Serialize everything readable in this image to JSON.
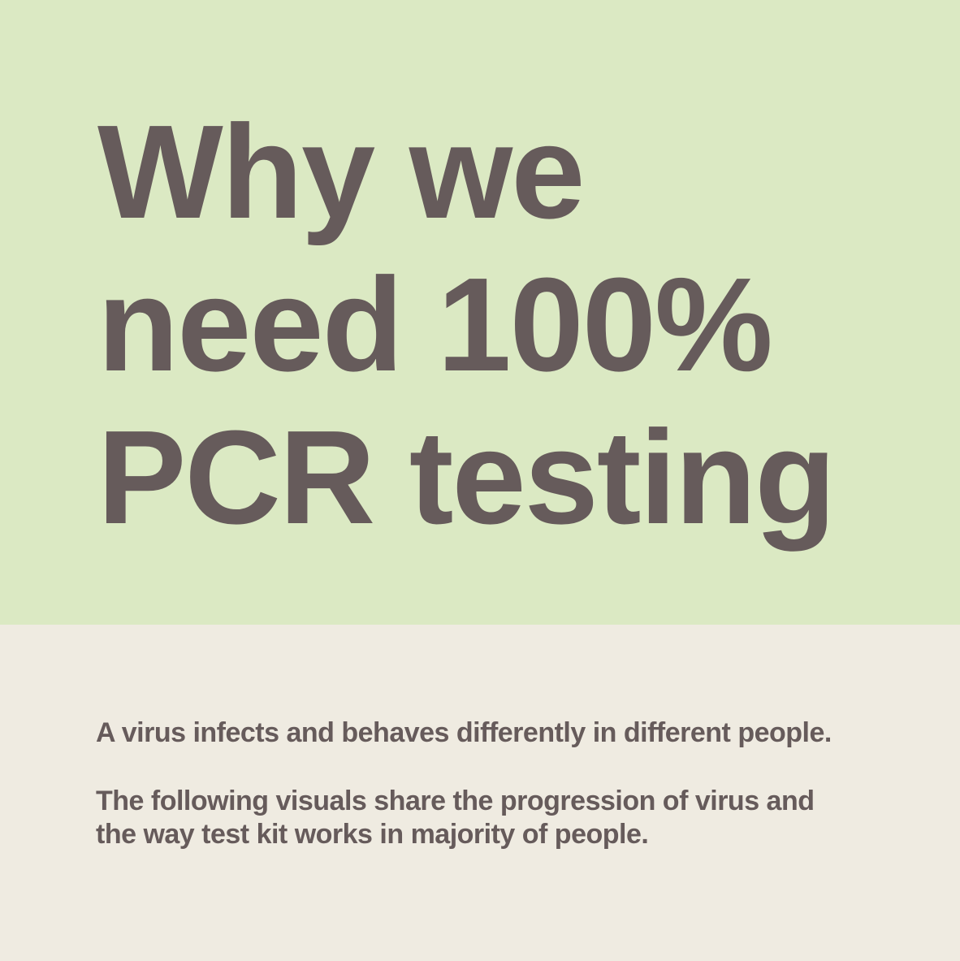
{
  "colors": {
    "top_background": "#dbe9c3",
    "bottom_background": "#efebe1",
    "text": "#665b5b"
  },
  "header": {
    "title_lines": [
      "Why we",
      "need 100%",
      "PCR testing"
    ]
  },
  "content": {
    "paragraph1": "A virus infects and behaves differently in different people.",
    "paragraph2_lines": [
      "The following visuals share the progression of virus and",
      "the way test kit works in majority of people."
    ]
  }
}
